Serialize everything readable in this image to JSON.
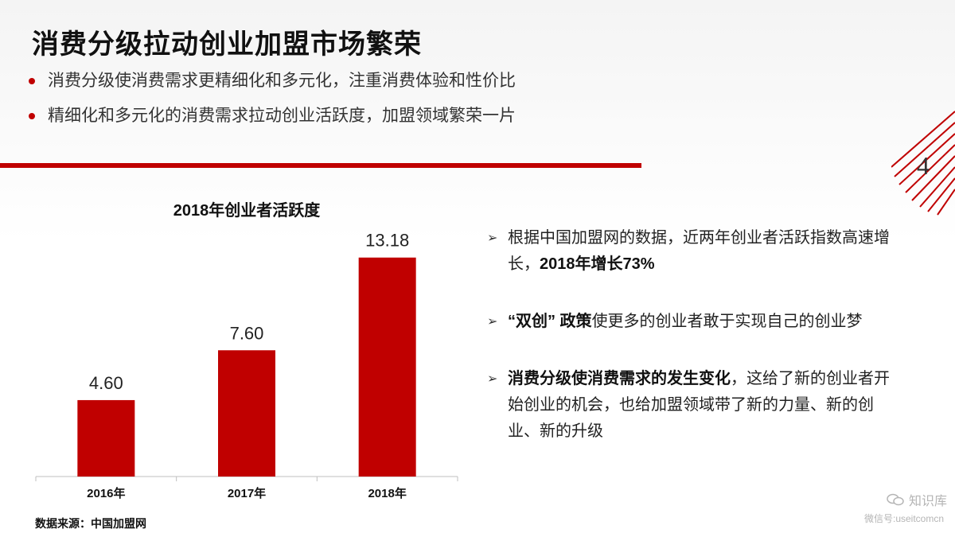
{
  "slide": {
    "title": "消费分级拉动创业加盟市场繁荣",
    "bullets": [
      "消费分级使消费需求更精细化和多元化，注重消费体验和性价比",
      "精细化和多元化的消费需求拉动创业活跃度，加盟领域繁荣一片"
    ],
    "page_number": "4",
    "accent_color": "#c00000"
  },
  "chart_data": {
    "type": "bar",
    "title": "2018年创业者活跃度",
    "categories": [
      "2016年",
      "2017年",
      "2018年"
    ],
    "values": [
      4.6,
      7.6,
      13.18
    ],
    "value_labels": [
      "4.60",
      "7.60",
      "13.18"
    ],
    "xlabel": "",
    "ylabel": "",
    "ylim": [
      0,
      14.7
    ],
    "grid": false,
    "bar_color": "#c00000"
  },
  "source": "数据来源：中国加盟网",
  "points": [
    {
      "parts": [
        {
          "text": "根据中国加盟网的数据，近两年创业者活跃指数高速增长，",
          "bold": false
        },
        {
          "text": "2018年增长73%",
          "bold": true
        }
      ]
    },
    {
      "parts": [
        {
          "text": "“双创” 政策",
          "bold": true
        },
        {
          "text": "使更多的创业者敢于实现自己的创业梦",
          "bold": false
        }
      ]
    },
    {
      "parts": [
        {
          "text": "消费分级使消费需求的发生变化",
          "bold": true
        },
        {
          "text": "，这给了新的创业者开始创业的机会，也给加盟领域带了新的力量、新的创业、新的升级",
          "bold": false
        }
      ]
    }
  ],
  "watermark": {
    "icon": "wechat-icon",
    "name": "知识库",
    "sub": "微信号:useitcomcn"
  }
}
